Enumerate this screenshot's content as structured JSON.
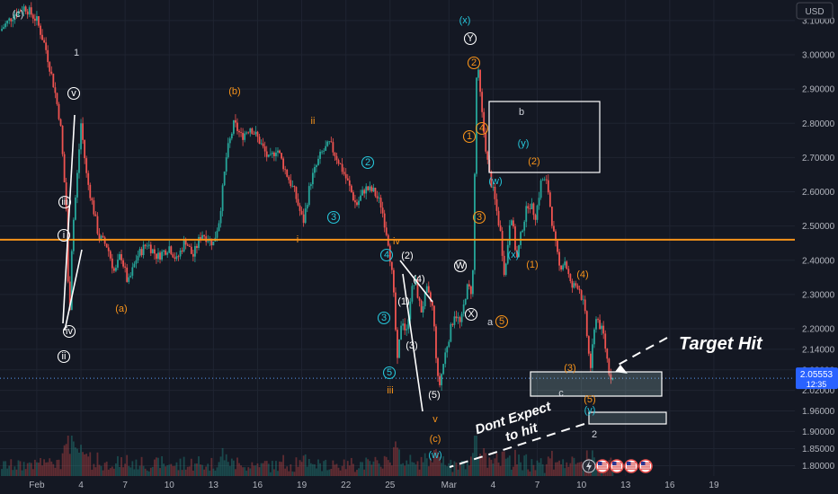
{
  "chart_data": {
    "type": "candlestick",
    "currency_label": "USD",
    "price_tag": {
      "value": "2.05553",
      "time": "12:35"
    },
    "ylim": [
      1.77,
      3.16
    ],
    "y_ticks": [
      "3.10000",
      "3.00000",
      "2.90000",
      "2.80000",
      "2.70000",
      "2.60000",
      "2.50000",
      "2.40000",
      "2.30000",
      "2.20000",
      "2.14000",
      "2.08000",
      "2.02000",
      "1.96000",
      "1.90000",
      "1.85000",
      "1.80000"
    ],
    "y_tick_values": [
      3.1,
      3.0,
      2.9,
      2.8,
      2.7,
      2.6,
      2.5,
      2.4,
      2.3,
      2.2,
      2.14,
      2.08,
      2.02,
      1.96,
      1.9,
      1.85,
      1.8
    ],
    "x_ticks": [
      "Feb",
      "4",
      "7",
      "10",
      "13",
      "16",
      "19",
      "22",
      "25",
      "Mar",
      "4",
      "7",
      "10",
      "13",
      "16",
      "19"
    ],
    "x_tick_days": [
      0,
      3,
      6,
      9,
      12,
      15,
      18,
      21,
      24,
      28,
      31,
      34,
      37,
      40,
      43,
      46
    ],
    "xlim_days": [
      -2.5,
      51.5
    ],
    "horizontal_level": 2.46,
    "close_price": 2.05553,
    "price_path": [
      [
        -2.5,
        3.07
      ],
      [
        -1.5,
        3.12
      ],
      [
        -0.8,
        3.14
      ],
      [
        0,
        3.1
      ],
      [
        0.6,
        3.02
      ],
      [
        1.2,
        2.9
      ],
      [
        1.6,
        2.8
      ],
      [
        2.0,
        2.55
      ],
      [
        2.2,
        2.2
      ],
      [
        2.4,
        2.47
      ],
      [
        2.7,
        2.62
      ],
      [
        3.0,
        2.8
      ],
      [
        3.4,
        2.64
      ],
      [
        3.8,
        2.56
      ],
      [
        4.2,
        2.47
      ],
      [
        4.8,
        2.44
      ],
      [
        5.3,
        2.36
      ],
      [
        5.7,
        2.42
      ],
      [
        6.2,
        2.33
      ],
      [
        6.8,
        2.41
      ],
      [
        7.5,
        2.45
      ],
      [
        8.2,
        2.41
      ],
      [
        9.0,
        2.44
      ],
      [
        9.5,
        2.4
      ],
      [
        10.1,
        2.46
      ],
      [
        10.6,
        2.41
      ],
      [
        11.2,
        2.48
      ],
      [
        12.0,
        2.45
      ],
      [
        12.4,
        2.52
      ],
      [
        12.9,
        2.71
      ],
      [
        13.4,
        2.8
      ],
      [
        13.9,
        2.76
      ],
      [
        14.5,
        2.79
      ],
      [
        15.1,
        2.75
      ],
      [
        15.8,
        2.69
      ],
      [
        16.3,
        2.73
      ],
      [
        16.9,
        2.66
      ],
      [
        17.5,
        2.6
      ],
      [
        18.1,
        2.51
      ],
      [
        18.6,
        2.63
      ],
      [
        19.3,
        2.71
      ],
      [
        19.9,
        2.74
      ],
      [
        20.5,
        2.69
      ],
      [
        21.1,
        2.63
      ],
      [
        21.7,
        2.56
      ],
      [
        22.3,
        2.61
      ],
      [
        22.9,
        2.6
      ],
      [
        23.4,
        2.56
      ],
      [
        23.9,
        2.45
      ],
      [
        24.2,
        2.33
      ],
      [
        24.5,
        2.1
      ],
      [
        24.8,
        2.24
      ],
      [
        25.1,
        2.18
      ],
      [
        25.4,
        2.3
      ],
      [
        25.7,
        2.34
      ],
      [
        26.1,
        2.25
      ],
      [
        26.5,
        2.31
      ],
      [
        26.9,
        2.26
      ],
      [
        27.3,
        2.02
      ],
      [
        27.8,
        2.14
      ],
      [
        28.4,
        2.25
      ],
      [
        28.8,
        2.21
      ],
      [
        29.2,
        2.32
      ],
      [
        29.6,
        2.31
      ],
      [
        29.9,
        2.99
      ],
      [
        30.3,
        2.8
      ],
      [
        30.7,
        2.66
      ],
      [
        31.1,
        2.58
      ],
      [
        31.5,
        2.48
      ],
      [
        31.8,
        2.35
      ],
      [
        32.2,
        2.55
      ],
      [
        32.6,
        2.4
      ],
      [
        33.0,
        2.5
      ],
      [
        33.4,
        2.57
      ],
      [
        33.9,
        2.53
      ],
      [
        34.3,
        2.64
      ],
      [
        34.7,
        2.62
      ],
      [
        35.1,
        2.48
      ],
      [
        35.5,
        2.38
      ],
      [
        35.9,
        2.4
      ],
      [
        36.3,
        2.32
      ],
      [
        36.8,
        2.33
      ],
      [
        37.2,
        2.26
      ],
      [
        37.6,
        2.08
      ],
      [
        38.0,
        2.24
      ],
      [
        38.5,
        2.18
      ],
      [
        38.9,
        2.07
      ],
      [
        39.2,
        2.05
      ]
    ]
  },
  "wave_labels": [
    {
      "text": "(c)",
      "color": "#d1d4dc"
    },
    {
      "text": "1",
      "color": "#d1d4dc"
    },
    {
      "text": "v",
      "color": "#ffffff",
      "circled": true
    },
    {
      "text": "iii",
      "color": "#ffffff",
      "circled": true
    },
    {
      "text": "i",
      "color": "#ffffff",
      "circled": true
    },
    {
      "text": "iv",
      "color": "#ffffff",
      "circled": true
    },
    {
      "text": "ii",
      "color": "#ffffff",
      "circled": true
    },
    {
      "text": "(a)",
      "color": "#f7931a"
    },
    {
      "text": "(b)",
      "color": "#f7931a"
    },
    {
      "text": "ii",
      "color": "#f7931a"
    },
    {
      "text": "i",
      "color": "#f7931a"
    },
    {
      "text": "3",
      "color": "#26c6da",
      "circled": true
    },
    {
      "text": "2",
      "color": "#26c6da",
      "circled": true
    },
    {
      "text": "iv",
      "color": "#f7931a"
    },
    {
      "text": "4",
      "color": "#26c6da",
      "circled": true
    },
    {
      "text": "3",
      "color": "#26c6da",
      "circled": true
    },
    {
      "text": "5",
      "color": "#26c6da",
      "circled": true
    },
    {
      "text": "iii",
      "color": "#f7931a"
    },
    {
      "text": "(2)",
      "color": "#ffffff"
    },
    {
      "text": "(4)",
      "color": "#ffffff"
    },
    {
      "text": "(1)",
      "color": "#ffffff"
    },
    {
      "text": "(3)",
      "color": "#ffffff"
    },
    {
      "text": "(5)",
      "color": "#ffffff"
    },
    {
      "text": "v",
      "color": "#f7931a"
    },
    {
      "text": "(c)",
      "color": "#f7931a"
    },
    {
      "text": "(w)",
      "color": "#26c6da"
    },
    {
      "text": "(x)",
      "color": "#26c6da"
    },
    {
      "text": "Y",
      "color": "#ffffff",
      "circled": true
    },
    {
      "text": "2",
      "color": "#f7931a",
      "circled": true
    },
    {
      "text": "1",
      "color": "#f7931a",
      "circled": true
    },
    {
      "text": "4",
      "color": "#f7931a",
      "circled": true
    },
    {
      "text": "3",
      "color": "#f7931a",
      "circled": true
    },
    {
      "text": "W",
      "color": "#ffffff",
      "circled": true
    },
    {
      "text": "X",
      "color": "#ffffff",
      "circled": true
    },
    {
      "text": "a",
      "color": "#d1d4dc"
    },
    {
      "text": "5",
      "color": "#f7931a",
      "circled": true
    },
    {
      "text": "(w)",
      "color": "#26c6da"
    },
    {
      "text": "(x)",
      "color": "#26c6da"
    },
    {
      "text": "(y)",
      "color": "#26c6da"
    },
    {
      "text": "(2)",
      "color": "#f7931a"
    },
    {
      "text": "(1)",
      "color": "#f7931a"
    },
    {
      "text": "(4)",
      "color": "#f7931a"
    },
    {
      "text": "(3)",
      "color": "#f7931a"
    },
    {
      "text": "(5)",
      "color": "#f7931a"
    },
    {
      "text": "(y)",
      "color": "#26c6da"
    },
    {
      "text": "2",
      "color": "#d1d4dc"
    },
    {
      "text": "b",
      "color": "#d1d4dc"
    },
    {
      "text": "c",
      "color": "#d1d4dc"
    }
  ],
  "annotations": {
    "target_hit": "Target Hit",
    "dont_expect_line1": "Dont Expect",
    "dont_expect_line2": "to hit"
  },
  "colors": {
    "background": "#141823",
    "level_line": "#f7931a",
    "price_tag": "#2962ff",
    "grid": "#1f2431",
    "candle_up": "#26a69a",
    "candle_down": "#ef5350",
    "target_box": "#b2dfdb"
  },
  "toolbar_icons": [
    "flag-icon",
    "flag-icon",
    "flag-icon",
    "flag-icon"
  ]
}
